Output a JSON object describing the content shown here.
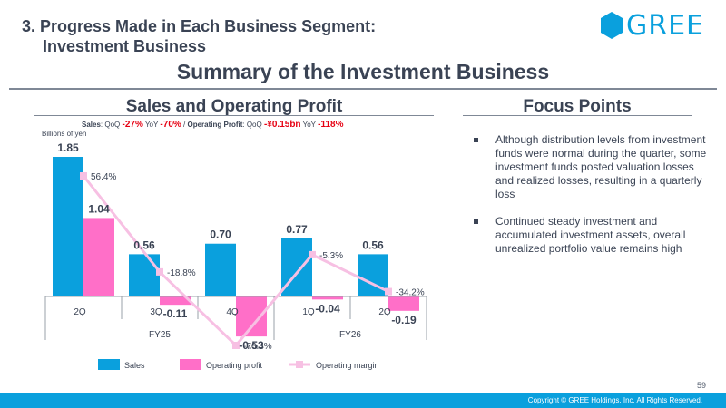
{
  "header": {
    "section_title_line1": "3. Progress Made in Each Business Segment:",
    "section_title_line2": "Investment Business",
    "logo_text": "GREE",
    "main_title": "Summary of the Investment Business"
  },
  "left_panel": {
    "heading": "Sales and Operating Profit",
    "summary": {
      "sales_label": "Sales",
      "qoq_label": "QoQ",
      "yoy_label": "YoY",
      "sales_qoq": "-27%",
      "sales_yoy": "-70%",
      "separator": "/",
      "op_label": "Operating Profit",
      "op_qoq": "-¥0.15bn",
      "op_yoy": "-118%"
    },
    "unit_label": "Billions of yen"
  },
  "right_panel": {
    "heading": "Focus Points",
    "bullets": [
      "Although distribution levels from investment funds were normal during the quarter, some investment funds posted valuation losses and realized losses, resulting in a quarterly loss",
      "Continued steady investment and accumulated investment assets, overall unrealized portfolio value remains high"
    ]
  },
  "colors": {
    "sales": "#0aa0dd",
    "operating_profit": "#ff6fc8",
    "operating_margin": "#f7c0e3",
    "text": "#3a4354",
    "footer": "#0aa0dd"
  },
  "chart_data": {
    "type": "bar",
    "categories": [
      "2Q",
      "3Q",
      "4Q",
      "1Q",
      "2Q"
    ],
    "groups": [
      {
        "label": "FY25",
        "categories": [
          "2Q",
          "3Q",
          "4Q"
        ]
      },
      {
        "label": "FY26",
        "categories": [
          "1Q",
          "2Q"
        ]
      }
    ],
    "series": [
      {
        "name": "Sales",
        "type": "bar",
        "values": [
          1.85,
          0.56,
          0.7,
          0.77,
          0.56
        ],
        "labels": [
          "1.85",
          "0.56",
          "0.70",
          "0.77",
          "0.56"
        ]
      },
      {
        "name": "Operating profit",
        "type": "bar",
        "values": [
          1.04,
          -0.11,
          -0.53,
          -0.04,
          -0.19
        ],
        "labels": [
          "1.04",
          "-0.11",
          "-0.53",
          "-0.04",
          "-0.19"
        ]
      },
      {
        "name": "Operating margin",
        "type": "line",
        "values": [
          56.4,
          -18.8,
          -76.4,
          -5.3,
          -34.2
        ],
        "labels": [
          "56.4%",
          "-18.8%",
          "-76.4%",
          "-5.3%",
          "-34.2%"
        ]
      }
    ],
    "ylim": [
      -0.6,
      1.9
    ],
    "margin_ylim": [
      -80,
      100
    ],
    "ylabel": "Billions of yen",
    "legend": "bottom"
  },
  "footer": {
    "page_number": "59",
    "copyright": "Copyright © GREE Holdings, Inc. All Rights Reserved."
  }
}
